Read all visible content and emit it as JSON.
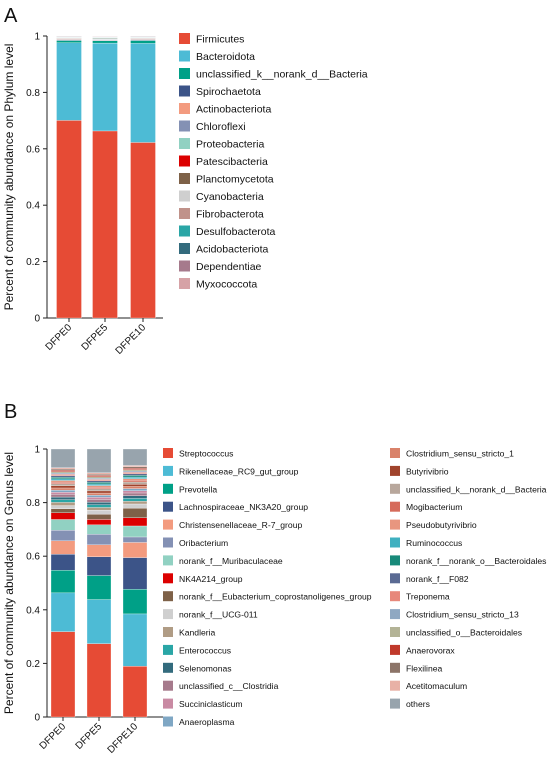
{
  "chart_data": [
    {
      "type": "bar",
      "stacked": true,
      "panel": "A",
      "ylabel": "Percent of community abundance on Phylum level",
      "ylim": [
        0,
        1
      ],
      "yticks": [
        "0",
        "0.2",
        "0.4",
        "0.6",
        "0.8",
        "1"
      ],
      "categories": [
        "DFPE0",
        "DFPE5",
        "DFPE10"
      ],
      "legend_position": "right",
      "series": [
        {
          "name": "Firmicutes",
          "color": "#e64b35",
          "values": [
            0.7,
            0.66,
            0.62
          ]
        },
        {
          "name": "Bacteroidota",
          "color": "#4dbbd5",
          "values": [
            0.275,
            0.31,
            0.35
          ]
        },
        {
          "name": "unclassified_k__norank_d__Bacteria",
          "color": "#00a087",
          "values": [
            0.008,
            0.008,
            0.01
          ]
        },
        {
          "name": "Spirochaetota",
          "color": "#3c5488",
          "values": [
            0.002,
            0.002,
            0.002
          ]
        },
        {
          "name": "Actinobacteriota",
          "color": "#f39b7f",
          "values": [
            0.002,
            0.002,
            0.002
          ]
        },
        {
          "name": "Chloroflexi",
          "color": "#8491b4",
          "values": [
            0.002,
            0.002,
            0.002
          ]
        },
        {
          "name": "Proteobacteria",
          "color": "#91d1c2",
          "values": [
            0.002,
            0.003,
            0.002
          ]
        },
        {
          "name": "Patescibacteria",
          "color": "#dc0000",
          "values": [
            0.001,
            0.001,
            0.001
          ]
        },
        {
          "name": "Planctomycetota",
          "color": "#7e6148",
          "values": [
            0.001,
            0.001,
            0.001
          ]
        },
        {
          "name": "Cyanobacteria",
          "color": "#cfcfcf",
          "values": [
            0.001,
            0.001,
            0.001
          ]
        },
        {
          "name": "Fibrobacterota",
          "color": "#c0928a",
          "values": [
            0.001,
            0.001,
            0.001
          ]
        },
        {
          "name": "Desulfobacterota",
          "color": "#2aa6a6",
          "values": [
            0.001,
            0.001,
            0.001
          ]
        },
        {
          "name": "Acidobacteriota",
          "color": "#336b7d",
          "values": [
            0.001,
            0.001,
            0.001
          ]
        },
        {
          "name": "Dependentiae",
          "color": "#a67a8c",
          "values": [
            0.001,
            0.001,
            0.001
          ]
        },
        {
          "name": "Myxococcota",
          "color": "#d6a2a6",
          "values": [
            0.001,
            0.001,
            0.001
          ]
        }
      ]
    },
    {
      "type": "bar",
      "stacked": true,
      "panel": "B",
      "ylabel": "Percent of community  abundance on Genus level",
      "ylim": [
        0,
        1
      ],
      "yticks": [
        "0",
        "0.2",
        "0.4",
        "0.6",
        "0.8",
        "1"
      ],
      "categories": [
        "DFPE0",
        "DFPE5",
        "DFPE10"
      ],
      "legend_position": "right",
      "series": [
        {
          "name": "Streptococcus",
          "color": "#e64b35",
          "values": [
            0.32,
            0.275,
            0.185
          ]
        },
        {
          "name": "Rikenellaceae_RC9_gut_group",
          "color": "#4dbbd5",
          "values": [
            0.145,
            0.165,
            0.19
          ]
        },
        {
          "name": "Prevotella",
          "color": "#00a087",
          "values": [
            0.085,
            0.09,
            0.09
          ]
        },
        {
          "name": "Lachnospiraceae_NK3A20_group",
          "color": "#3c5488",
          "values": [
            0.06,
            0.07,
            0.115
          ]
        },
        {
          "name": "Christensenellaceae_R-7_group",
          "color": "#f39b7f",
          "values": [
            0.05,
            0.045,
            0.055
          ]
        },
        {
          "name": "Oribacterium",
          "color": "#8491b4",
          "values": [
            0.04,
            0.04,
            0.02
          ]
        },
        {
          "name": "norank_f__Muribaculaceae",
          "color": "#91d1c2",
          "values": [
            0.04,
            0.035,
            0.04
          ]
        },
        {
          "name": "NK4A214_group",
          "color": "#dc0000",
          "values": [
            0.025,
            0.02,
            0.03
          ]
        },
        {
          "name": "norank_f__Eubacterium_coprostanoligenes_group",
          "color": "#7e6148",
          "values": [
            0.015,
            0.02,
            0.035
          ]
        },
        {
          "name": "norank_f__UCG-011",
          "color": "#cfcfcf",
          "values": [
            0.012,
            0.015,
            0.015
          ]
        },
        {
          "name": "Kandleria",
          "color": "#b09c85",
          "values": [
            0.012,
            0.01,
            0.01
          ]
        },
        {
          "name": "Enterococcus",
          "color": "#2aa6a6",
          "values": [
            0.01,
            0.01,
            0.01
          ]
        },
        {
          "name": "Selenomonas",
          "color": "#336b7d",
          "values": [
            0.01,
            0.01,
            0.01
          ]
        },
        {
          "name": "unclassified_c__Clostridia",
          "color": "#a67a8c",
          "values": [
            0.01,
            0.01,
            0.01
          ]
        },
        {
          "name": "Succiniclasticum",
          "color": "#c98aa3",
          "values": [
            0.008,
            0.008,
            0.008
          ]
        },
        {
          "name": "Anaeroplasma",
          "color": "#7fa7c4",
          "values": [
            0.008,
            0.008,
            0.008
          ]
        },
        {
          "name": "Clostridium_sensu_stricto_1",
          "color": "#d9826a",
          "values": [
            0.008,
            0.008,
            0.008
          ]
        },
        {
          "name": "Butyrivibrio",
          "color": "#a0432c",
          "values": [
            0.008,
            0.008,
            0.008
          ]
        },
        {
          "name": "unclassified_k__norank_d__Bacteria",
          "color": "#b8a79c",
          "values": [
            0.008,
            0.008,
            0.008
          ]
        },
        {
          "name": "Mogibacterium",
          "color": "#d66b5b",
          "values": [
            0.006,
            0.006,
            0.006
          ]
        },
        {
          "name": "Pseudobutyrivibrio",
          "color": "#e8967f",
          "values": [
            0.006,
            0.006,
            0.006
          ]
        },
        {
          "name": "Ruminococcus",
          "color": "#3fb0c0",
          "values": [
            0.006,
            0.006,
            0.006
          ]
        },
        {
          "name": "norank_f__norank_o__Bacteroidales",
          "color": "#188a7a",
          "values": [
            0.006,
            0.006,
            0.006
          ]
        },
        {
          "name": "norank_f__F082",
          "color": "#5a6a93",
          "values": [
            0.006,
            0.006,
            0.006
          ]
        },
        {
          "name": "Treponema",
          "color": "#e7887b",
          "values": [
            0.005,
            0.005,
            0.005
          ]
        },
        {
          "name": "Clostridium_sensu_stricto_13",
          "color": "#8fa8c2",
          "values": [
            0.005,
            0.005,
            0.005
          ]
        },
        {
          "name": "unclassified_o__Bacteroidales",
          "color": "#b3b396",
          "values": [
            0.005,
            0.005,
            0.005
          ]
        },
        {
          "name": "Anaerovorax",
          "color": "#c0392b",
          "values": [
            0.005,
            0.005,
            0.005
          ]
        },
        {
          "name": "Flexilinea",
          "color": "#8c7468",
          "values": [
            0.005,
            0.005,
            0.005
          ]
        },
        {
          "name": "Acetitomaculum",
          "color": "#e8b1a6",
          "values": [
            0.005,
            0.005,
            0.005
          ]
        },
        {
          "name": "others",
          "color": "#98a4ad",
          "values": [
            0.07,
            0.089,
            0.06
          ]
        }
      ]
    }
  ],
  "panels": {
    "a_label": "A",
    "b_label": "B"
  }
}
